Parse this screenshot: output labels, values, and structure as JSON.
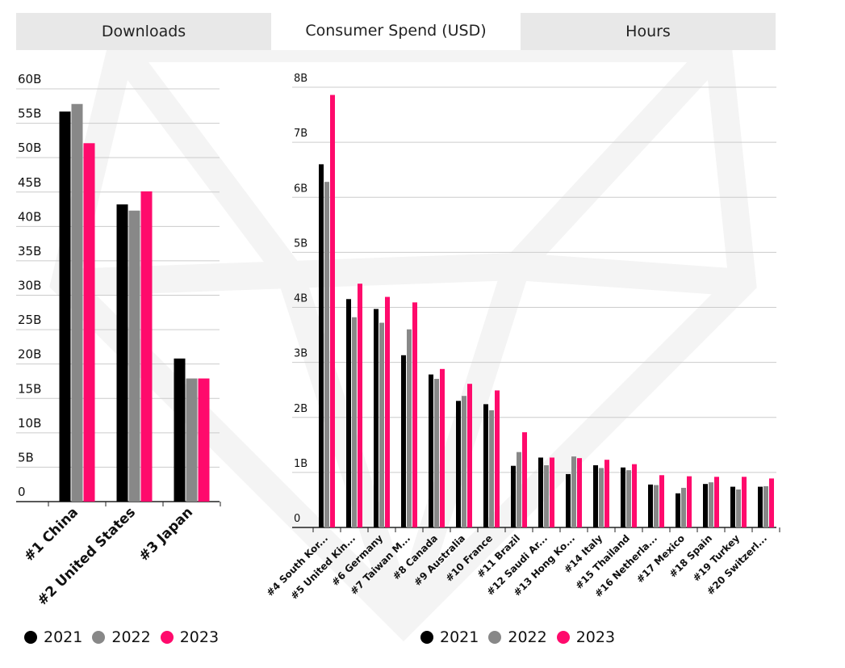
{
  "tabs": [
    {
      "label": "Downloads"
    },
    {
      "label": "Consumer Spend (USD)"
    },
    {
      "label": "Hours"
    }
  ],
  "colors": {
    "2021": "#000000",
    "2022": "#888888",
    "2023": "#ff0a6c",
    "grid": "#cccccc",
    "axis": "#222222"
  },
  "legend": [
    {
      "label": "2021",
      "color": "#000000"
    },
    {
      "label": "2022",
      "color": "#888888"
    },
    {
      "label": "2023",
      "color": "#ff0a6c"
    }
  ],
  "chart_data": [
    {
      "type": "bar",
      "title": "Downloads",
      "categories": [
        "#1 China",
        "#2 United States",
        "#3 Japan"
      ],
      "series": [
        {
          "name": "2021",
          "values": [
            56.7,
            43.2,
            20.8
          ]
        },
        {
          "name": "2022",
          "values": [
            57.8,
            42.3,
            17.9
          ]
        },
        {
          "name": "2023",
          "values": [
            52.1,
            45.1,
            17.9
          ]
        }
      ],
      "yticks": [
        "0",
        "5B",
        "10B",
        "15B",
        "20B",
        "25B",
        "30B",
        "35B",
        "40B",
        "45B",
        "50B",
        "55B",
        "60B"
      ],
      "ylim": [
        0,
        60
      ]
    },
    {
      "type": "bar",
      "title": "Consumer Spend (USD)",
      "categories": [
        "#4 South Kor...",
        "#5 United Kin...",
        "#6 Germany",
        "#7 Taiwan M...",
        "#8 Canada",
        "#9 Australia",
        "#10 France",
        "#11 Brazil",
        "#12 Saudi Ar...",
        "#13 Hong Ko...",
        "#14 Italy",
        "#15 Thailand",
        "#16 Netherla...",
        "#17 Mexico",
        "#18 Spain",
        "#19 Turkey",
        "#20 Switzerl..."
      ],
      "series": [
        {
          "name": "2021",
          "values": [
            6.6,
            4.15,
            3.97,
            3.13,
            2.78,
            2.3,
            2.24,
            1.12,
            1.27,
            0.97,
            1.13,
            1.09,
            0.78,
            0.62,
            0.79,
            0.74,
            0.74
          ]
        },
        {
          "name": "2022",
          "values": [
            6.28,
            3.82,
            3.72,
            3.6,
            2.7,
            2.39,
            2.13,
            1.37,
            1.13,
            1.29,
            1.08,
            1.04,
            0.77,
            0.72,
            0.82,
            0.69,
            0.75
          ]
        },
        {
          "name": "2023",
          "values": [
            7.86,
            4.43,
            4.19,
            4.09,
            2.88,
            2.61,
            2.49,
            1.73,
            1.27,
            1.26,
            1.23,
            1.15,
            0.95,
            0.93,
            0.92,
            0.92,
            0.89
          ]
        }
      ],
      "yticks": [
        "0",
        "1B",
        "2B",
        "3B",
        "4B",
        "5B",
        "6B",
        "7B",
        "8B"
      ],
      "ylim": [
        0,
        8
      ]
    }
  ]
}
